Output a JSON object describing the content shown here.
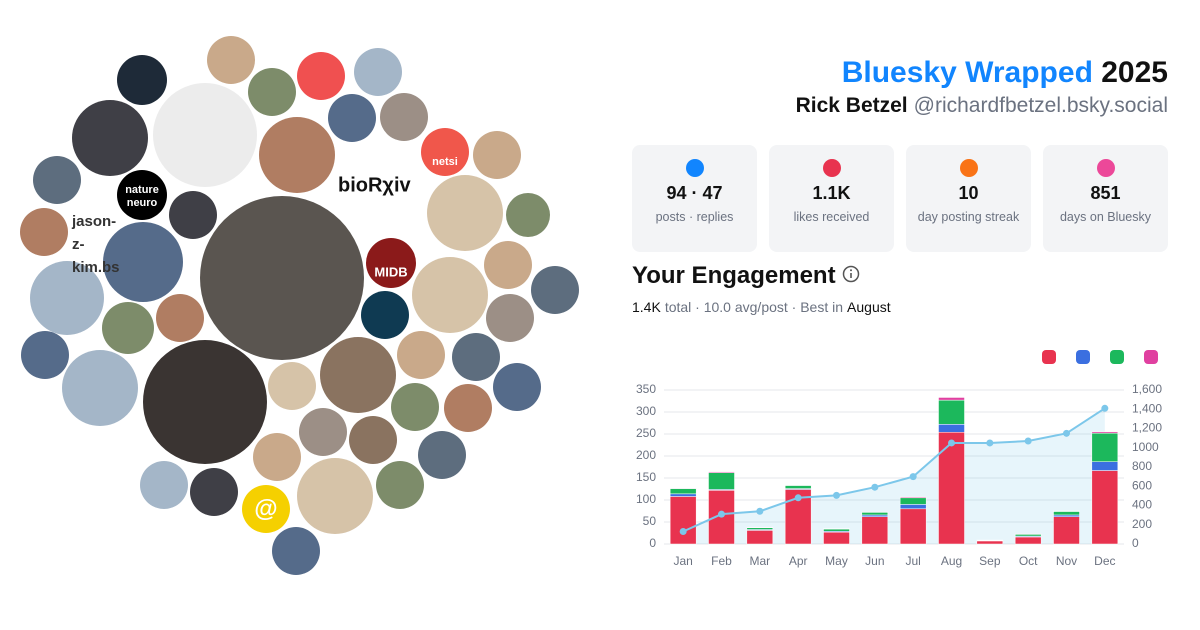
{
  "header": {
    "title": "Bluesky Wrapped",
    "year": "2025",
    "name": "Rick Betzel",
    "handle": "@richardfbetzel.bsky.social"
  },
  "avatar_labels": [
    "nature",
    "neuro",
    "bioRχiv",
    "MIDB",
    "netsi",
    "jason-",
    "z-",
    "kim.bs",
    "@"
  ],
  "stats": [
    {
      "value": "94 · 47",
      "label": "posts · replies"
    },
    {
      "value": "1.1K",
      "label": "likes received"
    },
    {
      "value": "10",
      "label": "day posting streak"
    },
    {
      "value": "851",
      "label": "days on Bluesky"
    }
  ],
  "engagement": {
    "heading": "Your Engagement",
    "summary": [
      "1.4K",
      "total · 10.0 avg/post · Best in",
      "August"
    ]
  },
  "chart_data": {
    "type": "bar",
    "categories": [
      "Jan",
      "Feb",
      "Mar",
      "Apr",
      "May",
      "Jun",
      "Jul",
      "Aug",
      "Sep",
      "Oct",
      "Nov",
      "Dec"
    ],
    "series": [
      {
        "color": "#e8334f",
        "values": [
          108,
          122,
          31,
          124,
          27,
          62,
          80,
          254,
          7,
          16,
          62,
          167
        ]
      },
      {
        "color": "#3b6fe0",
        "values": [
          6,
          2,
          2,
          2,
          2,
          4,
          10,
          18,
          1,
          2,
          4,
          20
        ]
      },
      {
        "color": "#1cb85c",
        "values": [
          12,
          38,
          4,
          7,
          5,
          6,
          15,
          55,
          1,
          4,
          8,
          65
        ]
      },
      {
        "color": "#e040a0",
        "values": [
          1,
          2,
          1,
          1,
          1,
          1,
          2,
          6,
          0,
          1,
          1,
          3
        ]
      },
      {
        "type": "line",
        "axis": "y2",
        "color": "#7cc7ea",
        "values": [
          130,
          310,
          340,
          480,
          505,
          590,
          700,
          1050,
          1050,
          1070,
          1150,
          1410
        ]
      }
    ],
    "ylim": [
      0,
      350
    ],
    "yticks": [
      0,
      50,
      100,
      150,
      200,
      250,
      300,
      350
    ],
    "y2lim": [
      0,
      1600
    ],
    "y2ticks": [
      0,
      200,
      400,
      600,
      800,
      1000,
      {
        "value": 1200,
        "label": "1,200"
      },
      {
        "value": 1400,
        "label": "1,400"
      },
      {
        "value": 1600,
        "label": "1,600"
      }
    ],
    "grid": true
  }
}
